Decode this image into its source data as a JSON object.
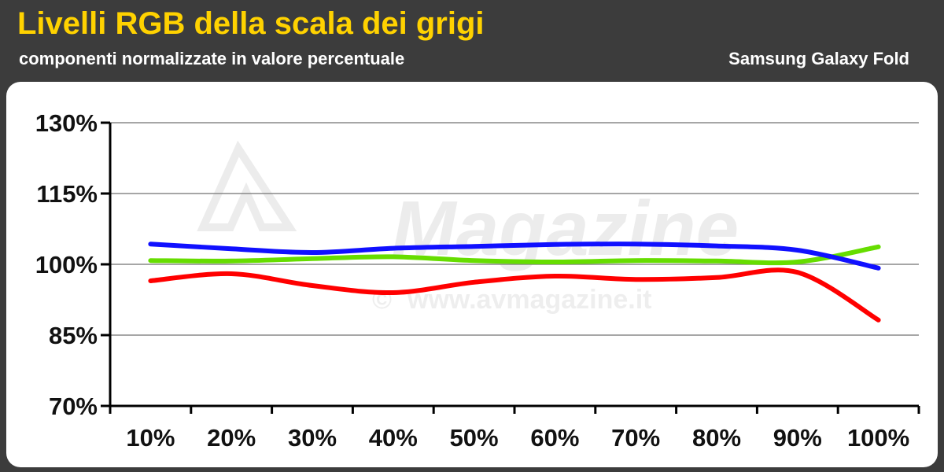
{
  "header": {
    "title": "Livelli RGB della scala dei grigi",
    "subtitle": "componenti normalizzate in valore percentuale",
    "device": "Samsung Galaxy Fold"
  },
  "watermark": {
    "brand": "Magazine",
    "url": "www.avmagazine.it",
    "copyright_symbol": "©"
  },
  "colors": {
    "header_bg": "#3c3c3c",
    "title": "#ffd200",
    "red": "#ff0000",
    "green": "#66dd00",
    "blue": "#1010ff"
  },
  "chart_data": {
    "type": "line",
    "categories": [
      "10%",
      "20%",
      "30%",
      "40%",
      "50%",
      "60%",
      "70%",
      "80%",
      "90%",
      "100%"
    ],
    "y_ticks": [
      "70%",
      "85%",
      "100%",
      "115%",
      "130%"
    ],
    "ylim": [
      70,
      130
    ],
    "grid": true,
    "series": [
      {
        "color": "#ff0000",
        "values": [
          96.5,
          98.0,
          95.5,
          94.0,
          96.2,
          97.5,
          96.8,
          97.2,
          98.3,
          88.2
        ]
      },
      {
        "color": "#66dd00",
        "values": [
          100.8,
          100.7,
          101.2,
          101.6,
          100.8,
          100.5,
          100.8,
          100.7,
          100.5,
          103.7
        ]
      },
      {
        "color": "#1010ff",
        "values": [
          104.3,
          103.3,
          102.5,
          103.4,
          103.8,
          104.2,
          104.3,
          103.9,
          103.0,
          99.2
        ]
      }
    ]
  }
}
